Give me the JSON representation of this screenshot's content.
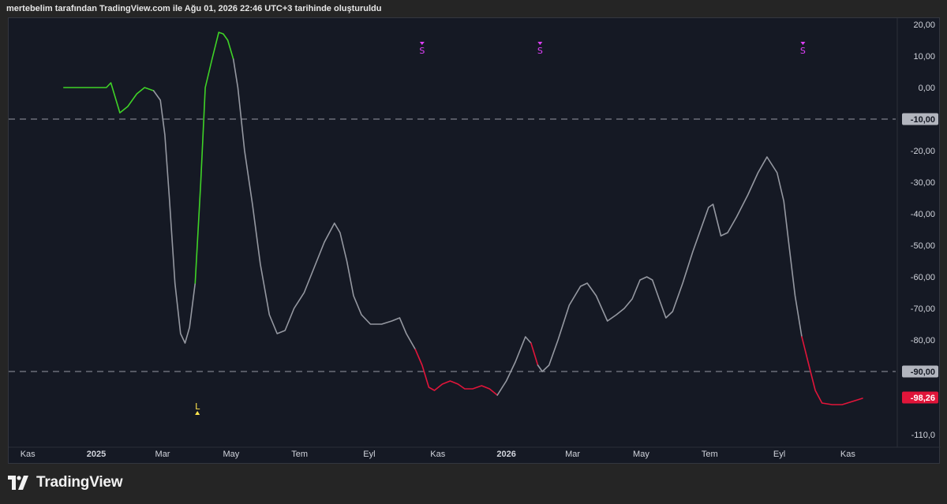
{
  "caption": "mertebelim tarafından TradingView.com ile Ağu 01, 2026 22:46 UTC+3 tarihinde oluşturuldu",
  "brand": {
    "name": "TradingView",
    "logo_icon": "tradingview-logo-icon"
  },
  "colors": {
    "background": "#151924",
    "neutral_line": "#9598a1",
    "bullish_line": "#3fd327",
    "bearish_line": "#e0153a",
    "level_line": "#7d808a",
    "level_label_bg": "#b2b5be",
    "last_value_bg": "#e0153a",
    "signal_s": "#e040fb",
    "signal_l": "#ffe54d",
    "axis_text": "#d1d4dc"
  },
  "chart_data": {
    "type": "line",
    "title": "",
    "xlabel": "",
    "ylabel": "",
    "ylim": [
      -114,
      22
    ],
    "x_ticks": [
      "Kas",
      "2025",
      "Mar",
      "May",
      "Tem",
      "Eyl",
      "Kas",
      "2026",
      "Mar",
      "May",
      "Tem",
      "Eyl",
      "Kas"
    ],
    "y_ticks": [
      "20,00",
      "10,00",
      "0,00",
      "-20,00",
      "-30,00",
      "-40,00",
      "-50,00",
      "-60,00",
      "-70,00",
      "-80,00",
      "-110,0"
    ],
    "x_start": "2024-10-15",
    "x_end": "2026-12-15",
    "series": [
      {
        "points": [
          {
            "x": "2024-12-03",
            "y": 0,
            "c": "bull"
          },
          {
            "x": "2025-01-10",
            "y": 0,
            "c": "bull"
          },
          {
            "x": "2025-01-14",
            "y": 1.5,
            "c": "bull"
          },
          {
            "x": "2025-01-22",
            "y": -8,
            "c": "bull"
          },
          {
            "x": "2025-01-29",
            "y": -6,
            "c": "bull"
          },
          {
            "x": "2025-02-06",
            "y": -2,
            "c": "bull"
          },
          {
            "x": "2025-02-13",
            "y": 0,
            "c": "bull"
          },
          {
            "x": "2025-02-21",
            "y": -1,
            "c": "bull"
          },
          {
            "x": "2025-02-27",
            "y": -4,
            "c": "neutral"
          },
          {
            "x": "2025-03-03",
            "y": -15,
            "c": "neutral"
          },
          {
            "x": "2025-03-07",
            "y": -35,
            "c": "neutral"
          },
          {
            "x": "2025-03-12",
            "y": -62,
            "c": "neutral"
          },
          {
            "x": "2025-03-17",
            "y": -78,
            "c": "neutral"
          },
          {
            "x": "2025-03-21",
            "y": -81,
            "c": "neutral"
          },
          {
            "x": "2025-03-25",
            "y": -76,
            "c": "neutral"
          },
          {
            "x": "2025-03-30",
            "y": -62,
            "c": "neutral"
          },
          {
            "x": "2025-04-04",
            "y": -30,
            "c": "bull"
          },
          {
            "x": "2025-04-08",
            "y": 0,
            "c": "bull"
          },
          {
            "x": "2025-04-14",
            "y": 9,
            "c": "bull"
          },
          {
            "x": "2025-04-20",
            "y": 17.5,
            "c": "bull"
          },
          {
            "x": "2025-04-24",
            "y": 17,
            "c": "bull"
          },
          {
            "x": "2025-04-28",
            "y": 15,
            "c": "bull"
          },
          {
            "x": "2025-05-03",
            "y": 9,
            "c": "bull"
          },
          {
            "x": "2025-05-07",
            "y": 0,
            "c": "neutral"
          },
          {
            "x": "2025-05-13",
            "y": -20,
            "c": "neutral"
          },
          {
            "x": "2025-05-20",
            "y": -37,
            "c": "neutral"
          },
          {
            "x": "2025-05-27",
            "y": -56,
            "c": "neutral"
          },
          {
            "x": "2025-06-04",
            "y": -72,
            "c": "neutral"
          },
          {
            "x": "2025-06-11",
            "y": -78,
            "c": "neutral"
          },
          {
            "x": "2025-06-18",
            "y": -77,
            "c": "neutral"
          },
          {
            "x": "2025-06-26",
            "y": -70,
            "c": "neutral"
          },
          {
            "x": "2025-07-05",
            "y": -65,
            "c": "neutral"
          },
          {
            "x": "2025-07-14",
            "y": -57,
            "c": "neutral"
          },
          {
            "x": "2025-07-23",
            "y": -49,
            "c": "neutral"
          },
          {
            "x": "2025-08-01",
            "y": -43,
            "c": "neutral"
          },
          {
            "x": "2025-08-06",
            "y": -46,
            "c": "neutral"
          },
          {
            "x": "2025-08-12",
            "y": -55,
            "c": "neutral"
          },
          {
            "x": "2025-08-18",
            "y": -66,
            "c": "neutral"
          },
          {
            "x": "2025-08-25",
            "y": -72,
            "c": "neutral"
          },
          {
            "x": "2025-09-02",
            "y": -75,
            "c": "neutral"
          },
          {
            "x": "2025-09-12",
            "y": -75,
            "c": "neutral"
          },
          {
            "x": "2025-09-21",
            "y": -74,
            "c": "neutral"
          },
          {
            "x": "2025-09-28",
            "y": -73,
            "c": "neutral"
          },
          {
            "x": "2025-10-04",
            "y": -78,
            "c": "neutral"
          },
          {
            "x": "2025-10-12",
            "y": -83,
            "c": "neutral"
          },
          {
            "x": "2025-10-18",
            "y": -88,
            "c": "bear"
          },
          {
            "x": "2025-10-24",
            "y": -95,
            "c": "bear"
          },
          {
            "x": "2025-10-29",
            "y": -96,
            "c": "bear"
          },
          {
            "x": "2025-11-05",
            "y": -94,
            "c": "bear"
          },
          {
            "x": "2025-11-12",
            "y": -93,
            "c": "bear"
          },
          {
            "x": "2025-11-19",
            "y": -94,
            "c": "bear"
          },
          {
            "x": "2025-11-25",
            "y": -95.5,
            "c": "bear"
          },
          {
            "x": "2025-12-02",
            "y": -95.5,
            "c": "bear"
          },
          {
            "x": "2025-12-10",
            "y": -94.5,
            "c": "bear"
          },
          {
            "x": "2025-12-17",
            "y": -95.5,
            "c": "bear"
          },
          {
            "x": "2025-12-24",
            "y": -97.5,
            "c": "bear"
          },
          {
            "x": "2026-01-01",
            "y": -93,
            "c": "neutral"
          },
          {
            "x": "2026-01-09",
            "y": -87,
            "c": "neutral"
          },
          {
            "x": "2026-01-18",
            "y": -79,
            "c": "neutral"
          },
          {
            "x": "2026-01-23",
            "y": -81,
            "c": "neutral"
          },
          {
            "x": "2026-01-29",
            "y": -88,
            "c": "bear"
          },
          {
            "x": "2026-02-02",
            "y": -90,
            "c": "neutral"
          },
          {
            "x": "2026-02-08",
            "y": -88,
            "c": "neutral"
          },
          {
            "x": "2026-02-16",
            "y": -80,
            "c": "neutral"
          },
          {
            "x": "2026-02-26",
            "y": -69,
            "c": "neutral"
          },
          {
            "x": "2026-03-08",
            "y": -63,
            "c": "neutral"
          },
          {
            "x": "2026-03-14",
            "y": -62,
            "c": "neutral"
          },
          {
            "x": "2026-03-22",
            "y": -66,
            "c": "neutral"
          },
          {
            "x": "2026-04-01",
            "y": -74,
            "c": "neutral"
          },
          {
            "x": "2026-04-09",
            "y": -72,
            "c": "neutral"
          },
          {
            "x": "2026-04-16",
            "y": -70,
            "c": "neutral"
          },
          {
            "x": "2026-04-23",
            "y": -67,
            "c": "neutral"
          },
          {
            "x": "2026-04-30",
            "y": -61,
            "c": "neutral"
          },
          {
            "x": "2026-05-06",
            "y": -60,
            "c": "neutral"
          },
          {
            "x": "2026-05-11",
            "y": -61,
            "c": "neutral"
          },
          {
            "x": "2026-05-17",
            "y": -67,
            "c": "neutral"
          },
          {
            "x": "2026-05-23",
            "y": -73,
            "c": "neutral"
          },
          {
            "x": "2026-05-29",
            "y": -71,
            "c": "neutral"
          },
          {
            "x": "2026-06-07",
            "y": -62,
            "c": "neutral"
          },
          {
            "x": "2026-06-16",
            "y": -52,
            "c": "neutral"
          },
          {
            "x": "2026-06-25",
            "y": -43,
            "c": "neutral"
          },
          {
            "x": "2026-06-30",
            "y": -38,
            "c": "neutral"
          },
          {
            "x": "2026-07-04",
            "y": -37,
            "c": "neutral"
          },
          {
            "x": "2026-07-11",
            "y": -47,
            "c": "neutral"
          },
          {
            "x": "2026-07-17",
            "y": -46,
            "c": "neutral"
          },
          {
            "x": "2026-07-25",
            "y": -41,
            "c": "neutral"
          },
          {
            "x": "2026-08-04",
            "y": -34,
            "c": "neutral"
          },
          {
            "x": "2026-08-13",
            "y": -27,
            "c": "neutral"
          },
          {
            "x": "2026-08-21",
            "y": -22,
            "c": "neutral"
          },
          {
            "x": "2026-08-30",
            "y": -27,
            "c": "neutral"
          },
          {
            "x": "2026-09-05",
            "y": -36,
            "c": "neutral"
          },
          {
            "x": "2026-09-10",
            "y": -51,
            "c": "neutral"
          },
          {
            "x": "2026-09-15",
            "y": -66,
            "c": "neutral"
          },
          {
            "x": "2026-09-21",
            "y": -79,
            "c": "neutral"
          },
          {
            "x": "2026-09-28",
            "y": -89,
            "c": "bear"
          },
          {
            "x": "2026-10-03",
            "y": -96,
            "c": "bear"
          },
          {
            "x": "2026-10-09",
            "y": -100,
            "c": "bear"
          },
          {
            "x": "2026-10-18",
            "y": -100.5,
            "c": "bear"
          },
          {
            "x": "2026-10-27",
            "y": -100.5,
            "c": "bear"
          },
          {
            "x": "2026-11-05",
            "y": -99.5,
            "c": "bear"
          },
          {
            "x": "2026-11-14",
            "y": -98.5,
            "c": "bear"
          }
        ]
      }
    ],
    "levels": [
      {
        "y": -10,
        "label": "-10,00"
      },
      {
        "y": -90,
        "label": "-90,00"
      }
    ],
    "last_value": {
      "y": -98.26,
      "label": "-98,26"
    },
    "signals": [
      {
        "x": "2025-04-01",
        "type": "L",
        "label": "L"
      },
      {
        "x": "2025-10-18",
        "type": "S",
        "label": "S"
      },
      {
        "x": "2026-01-31",
        "type": "S",
        "label": "S"
      },
      {
        "x": "2026-09-22",
        "type": "S",
        "label": "S"
      }
    ]
  }
}
